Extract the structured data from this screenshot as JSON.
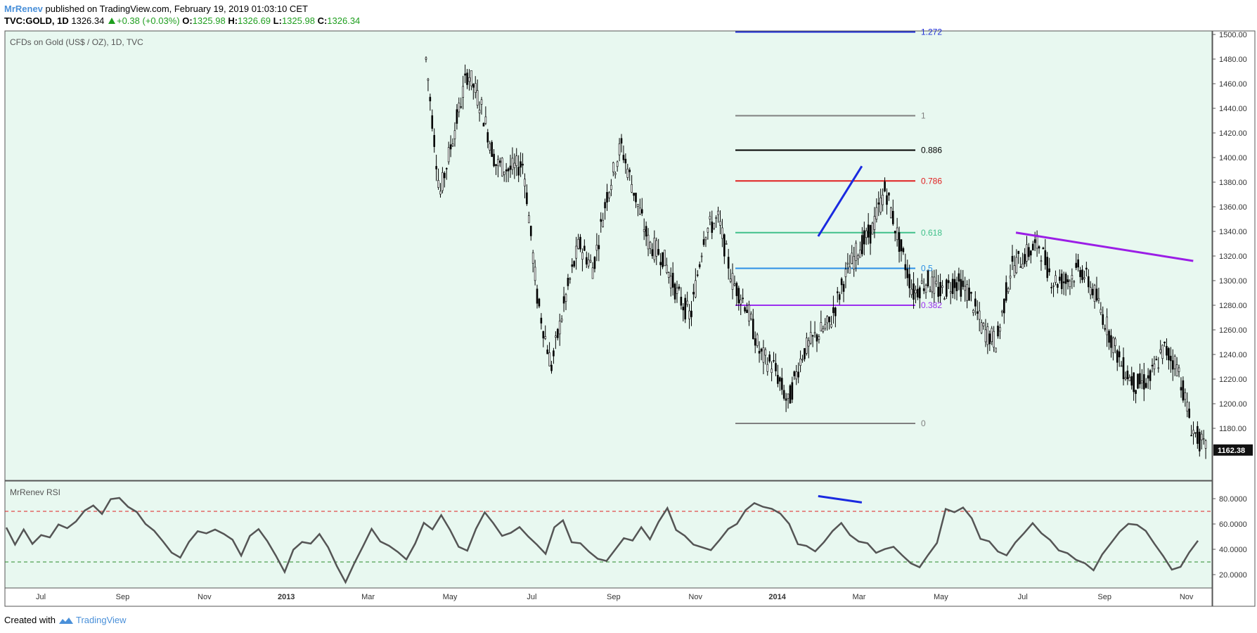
{
  "header": {
    "author": "MrRenev",
    "published": "published on TradingView.com, February 19, 2019 01:03:10 CET",
    "symbol": "TVC:GOLD, 1D",
    "last": "1326.34",
    "change": "+0.38 (+0.03%)",
    "o_label": "O:",
    "o_value": "1325.98",
    "h_label": "H:",
    "h_value": "1326.69",
    "l_label": "L:",
    "l_value": "1325.98",
    "c_label": "C:",
    "c_value": "1326.34"
  },
  "footer": {
    "created": "Created with",
    "brand": "TradingView"
  },
  "chart_data": {
    "type": "candlestick",
    "title": "CFDs on Gold (US$ / OZ), 1D, TVC",
    "price_axis": {
      "min": 1162,
      "max": 1500,
      "ticks": [
        "1500.00",
        "1480.00",
        "1460.00",
        "1440.00",
        "1420.00",
        "1400.00",
        "1380.00",
        "1360.00",
        "1340.00",
        "1320.00",
        "1300.00",
        "1280.00",
        "1260.00",
        "1240.00",
        "1220.00",
        "1200.00",
        "1180.00"
      ]
    },
    "last_price_label": "1162.38",
    "x_ticks": [
      "Jul",
      "Sep",
      "Nov",
      "2013",
      "Mar",
      "May",
      "Jul",
      "Sep",
      "Nov",
      "2014",
      "Mar",
      "May",
      "Jul",
      "Sep",
      "Nov"
    ],
    "close_path": [
      {
        "date": "2013-04",
        "close": 1480
      },
      {
        "date": "2013-04",
        "close": 1370
      },
      {
        "date": "2013-04",
        "close": 1420
      },
      {
        "date": "2013-05",
        "close": 1470
      },
      {
        "date": "2013-05",
        "close": 1440
      },
      {
        "date": "2013-05",
        "close": 1395
      },
      {
        "date": "2013-06",
        "close": 1390
      },
      {
        "date": "2013-06",
        "close": 1395
      },
      {
        "date": "2013-06",
        "close": 1285
      },
      {
        "date": "2013-07",
        "close": 1230
      },
      {
        "date": "2013-07",
        "close": 1285
      },
      {
        "date": "2013-07",
        "close": 1330
      },
      {
        "date": "2013-08",
        "close": 1310
      },
      {
        "date": "2013-08",
        "close": 1370
      },
      {
        "date": "2013-08",
        "close": 1410
      },
      {
        "date": "2013-09",
        "close": 1370
      },
      {
        "date": "2013-09",
        "close": 1330
      },
      {
        "date": "2013-09",
        "close": 1320
      },
      {
        "date": "2013-10",
        "close": 1290
      },
      {
        "date": "2013-10",
        "close": 1270
      },
      {
        "date": "2013-10",
        "close": 1340
      },
      {
        "date": "2013-11",
        "close": 1350
      },
      {
        "date": "2013-11",
        "close": 1300
      },
      {
        "date": "2013-11",
        "close": 1280
      },
      {
        "date": "2013-12",
        "close": 1240
      },
      {
        "date": "2013-12",
        "close": 1230
      },
      {
        "date": "2013-12",
        "close": 1200
      },
      {
        "date": "2014-01",
        "close": 1240
      },
      {
        "date": "2014-01",
        "close": 1255
      },
      {
        "date": "2014-02",
        "close": 1265
      },
      {
        "date": "2014-02",
        "close": 1300
      },
      {
        "date": "2014-02",
        "close": 1325
      },
      {
        "date": "2014-03",
        "close": 1340
      },
      {
        "date": "2014-03",
        "close": 1375
      },
      {
        "date": "2014-03",
        "close": 1330
      },
      {
        "date": "2014-04",
        "close": 1290
      },
      {
        "date": "2014-04",
        "close": 1300
      },
      {
        "date": "2014-04",
        "close": 1290
      },
      {
        "date": "2014-05",
        "close": 1300
      },
      {
        "date": "2014-05",
        "close": 1290
      },
      {
        "date": "2014-06",
        "close": 1260
      },
      {
        "date": "2014-06",
        "close": 1250
      },
      {
        "date": "2014-06",
        "close": 1310
      },
      {
        "date": "2014-07",
        "close": 1320
      },
      {
        "date": "2014-07",
        "close": 1330
      },
      {
        "date": "2014-07",
        "close": 1300
      },
      {
        "date": "2014-08",
        "close": 1300
      },
      {
        "date": "2014-08",
        "close": 1310
      },
      {
        "date": "2014-08",
        "close": 1290
      },
      {
        "date": "2014-09",
        "close": 1260
      },
      {
        "date": "2014-09",
        "close": 1230
      },
      {
        "date": "2014-09",
        "close": 1215
      },
      {
        "date": "2014-10",
        "close": 1220
      },
      {
        "date": "2014-10",
        "close": 1245
      },
      {
        "date": "2014-10",
        "close": 1230
      },
      {
        "date": "2014-11",
        "close": 1180
      },
      {
        "date": "2014-11",
        "close": 1162
      }
    ],
    "fib_levels": [
      {
        "label": "1.272",
        "price": 1502,
        "color": "#2130d6"
      },
      {
        "label": "1",
        "price": 1434,
        "color": "#808080"
      },
      {
        "label": "0.886",
        "price": 1406,
        "color": "#000000"
      },
      {
        "label": "0.786",
        "price": 1381,
        "color": "#e02020"
      },
      {
        "label": "0.618",
        "price": 1339,
        "color": "#3fc08a"
      },
      {
        "label": "0.5",
        "price": 1310,
        "color": "#2b8fe6"
      },
      {
        "label": "0.382",
        "price": 1280,
        "color": "#9b2ff0"
      },
      {
        "label": "0",
        "price": 1184,
        "color": "#808080"
      }
    ],
    "trendlines": [
      {
        "color": "#1a2ae0",
        "from": {
          "date": "2014-02-15",
          "price": 1336
        },
        "to": {
          "date": "2014-03-17",
          "price": 1393
        }
      },
      {
        "color": "#9b1ee6",
        "from": {
          "date": "2014-07-10",
          "price": 1339
        },
        "to": {
          "date": "2014-11-20",
          "price": 1316
        }
      }
    ],
    "rsi": {
      "label": "MrRenev RSI",
      "axis": {
        "min": 10,
        "max": 85,
        "ticks": [
          "80.0000",
          "60.0000",
          "40.0000",
          "20.0000"
        ]
      },
      "overbought": 70,
      "oversold": 30,
      "values": [
        55,
        45,
        58,
        42,
        52,
        48,
        60,
        55,
        64,
        68,
        72,
        66,
        78,
        82,
        76,
        70,
        62,
        55,
        48,
        40,
        35,
        45,
        55,
        50,
        58,
        52,
        45,
        38,
        48,
        55,
        45,
        32,
        22,
        38,
        48,
        42,
        52,
        40,
        28,
        15,
        30,
        45,
        55,
        48,
        42,
        35,
        30,
        45,
        60,
        55,
        65,
        58,
        45,
        40,
        55,
        70,
        62,
        48,
        55,
        60,
        52,
        42,
        38,
        55,
        62,
        48,
        45,
        40,
        35,
        32,
        38,
        48,
        45,
        55,
        50,
        62,
        70,
        58,
        50,
        45,
        40,
        38,
        48,
        55,
        62,
        70,
        78,
        74,
        72,
        66,
        58,
        45,
        40,
        36,
        45,
        52,
        58,
        50,
        48,
        45,
        40,
        42,
        40,
        38,
        30,
        26,
        38,
        48,
        70,
        68,
        72,
        66,
        50,
        45,
        40,
        38,
        45,
        55,
        60,
        52,
        48,
        40,
        38,
        32,
        28,
        26,
        35,
        42,
        55,
        60,
        58,
        55,
        45,
        36,
        22,
        25,
        40,
        44
      ]
    },
    "rsi_divergence": {
      "color": "#1a2ae0",
      "from": {
        "date": "2014-02-15",
        "value": 82
      },
      "to": {
        "date": "2014-03-17",
        "value": 77
      }
    }
  }
}
